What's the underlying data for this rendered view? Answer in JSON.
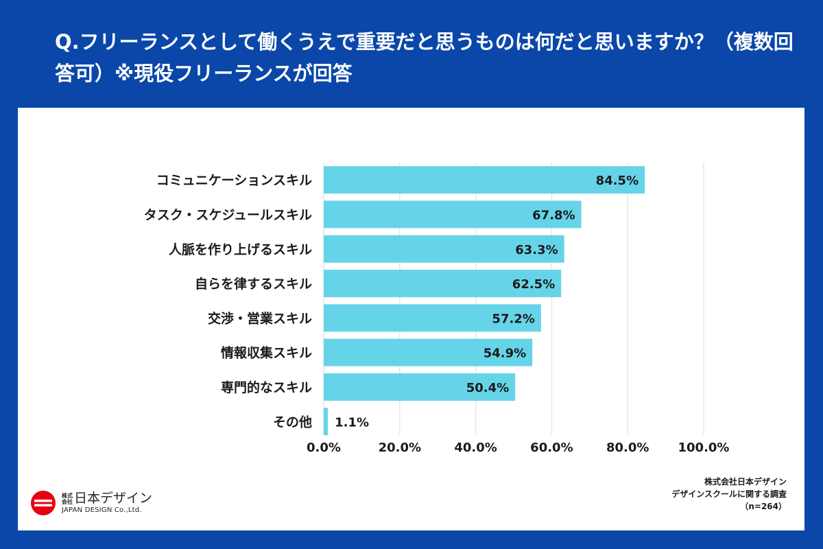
{
  "title": "Q.フリーランスとして働くうえで重要だと思うものは何だと思いますか？（複数回答可）※現役フリーランスが回答",
  "chart_data": {
    "type": "bar",
    "orientation": "horizontal",
    "categories": [
      "コミュニケーションスキル",
      "タスク・スケジュールスキル",
      "人脈を作り上げるスキル",
      "自らを律するスキル",
      "交渉・営業スキル",
      "情報収集スキル",
      "専門的なスキル",
      "その他"
    ],
    "values": [
      84.5,
      67.8,
      63.3,
      62.5,
      57.2,
      54.9,
      50.4,
      1.1
    ],
    "value_labels": [
      "84.5%",
      "67.8%",
      "63.3%",
      "62.5%",
      "57.2%",
      "54.9%",
      "50.4%",
      "1.1%"
    ],
    "xlim": [
      0,
      100
    ],
    "ticks": [
      0,
      20,
      40,
      60,
      80,
      100
    ],
    "tick_labels": [
      "0.0%",
      "20.0%",
      "40.0%",
      "60.0%",
      "80.0%",
      "100.0%"
    ],
    "grid": true,
    "bar_color": "#66d4e8",
    "grid_color": "#e3e6ea"
  },
  "logo": {
    "small_text": "株式会社",
    "name": "日本デザイン",
    "english": "JAPAN DESIGN Co.,Ltd."
  },
  "source": {
    "line1": "株式会社日本デザイン",
    "line2": "デザインスクールに関する調査",
    "line3": "（n=264）"
  },
  "colors": {
    "background": "#0a47a9",
    "logo_red": "#e60012"
  }
}
